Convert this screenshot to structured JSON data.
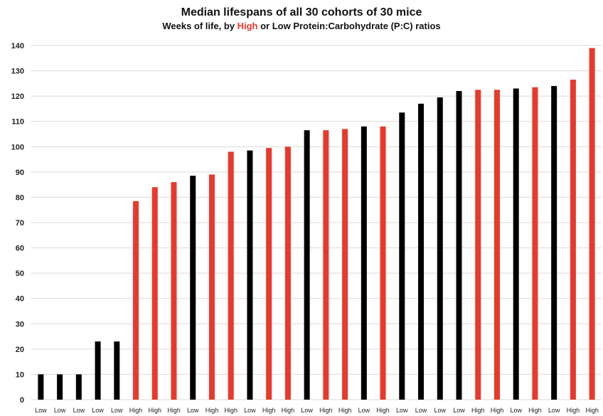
{
  "colors": {
    "high": "#e8392a",
    "low": "#000000",
    "grid": "#d9d9d9"
  },
  "chart_data": {
    "type": "bar",
    "title": "Median lifespans of all 30 cohorts of 30 mice",
    "subtitle": {
      "prefix": "Weeks of life, by ",
      "highlight": "High",
      "suffix": " or Low Protein:Carbohydrate (P:C) ratios"
    },
    "ylim": [
      0,
      140
    ],
    "yticks": [
      0,
      10,
      20,
      30,
      40,
      50,
      60,
      70,
      80,
      90,
      100,
      110,
      120,
      130,
      140
    ],
    "grid": true,
    "categories": [
      "Low",
      "Low",
      "Low",
      "Low",
      "Low",
      "High",
      "High",
      "High",
      "Low",
      "High",
      "High",
      "Low",
      "High",
      "High",
      "Low",
      "High",
      "High",
      "Low",
      "High",
      "Low",
      "Low",
      "Low",
      "Low",
      "High",
      "High",
      "Low",
      "High",
      "Low",
      "High",
      "High"
    ],
    "values": [
      10,
      10,
      10,
      23,
      23,
      78.5,
      84,
      86,
      88.5,
      89,
      98,
      98.5,
      99.5,
      100,
      106.5,
      106.5,
      107,
      108,
      108,
      113.5,
      117,
      119.5,
      122,
      122.5,
      122.5,
      123,
      123.5,
      124,
      126.5,
      139
    ]
  }
}
